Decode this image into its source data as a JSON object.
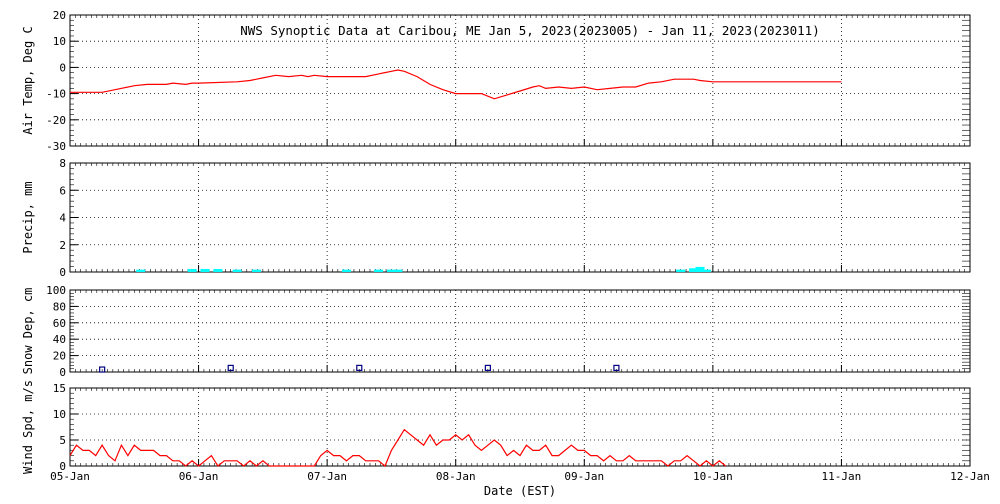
{
  "title": "NWS Synoptic Data at Caribou, ME   Jan  5, 2023(2023005) - Jan 11, 2023(2023011)",
  "chart_data": [
    {
      "type": "line",
      "ylabel": "Air Temp, Deg C",
      "ylim": [
        -30,
        20
      ],
      "yticks": [
        20,
        10,
        0,
        -10,
        -20,
        -30
      ],
      "xlim": [
        0,
        7
      ],
      "series": [
        {
          "color": "#ff0000",
          "x": [
            0,
            0.25,
            0.35,
            0.5,
            0.6,
            0.75,
            0.8,
            0.9,
            0.95,
            1.0,
            1.3,
            1.4,
            1.5,
            1.6,
            1.7,
            1.8,
            1.85,
            1.9,
            2.0,
            2.2,
            2.3,
            2.4,
            2.45,
            2.5,
            2.55,
            2.6,
            2.7,
            2.8,
            2.9,
            3.0,
            3.1,
            3.2,
            3.25,
            3.3,
            3.4,
            3.5,
            3.6,
            3.65,
            3.7,
            3.8,
            3.9,
            4.0,
            4.1,
            4.2,
            4.3,
            4.4,
            4.5,
            4.6,
            4.7,
            4.8,
            4.85,
            4.9,
            5.0,
            6.0
          ],
          "y": [
            -9.5,
            -9.5,
            -8.5,
            -7.0,
            -6.5,
            -6.5,
            -6.0,
            -6.5,
            -6.0,
            -6.0,
            -5.5,
            -5.0,
            -4.0,
            -3.0,
            -3.5,
            -3.0,
            -3.5,
            -3.0,
            -3.5,
            -3.5,
            -3.5,
            -2.5,
            -2.0,
            -1.5,
            -1.0,
            -1.5,
            -3.5,
            -6.5,
            -8.5,
            -10.0,
            -10.0,
            -10.0,
            -11.0,
            -12.0,
            -10.5,
            -9.0,
            -7.5,
            -7.0,
            -8.0,
            -7.5,
            -8.0,
            -7.5,
            -8.5,
            -8.0,
            -7.5,
            -7.5,
            -6.0,
            -5.5,
            -4.5,
            -4.5,
            -4.5,
            -5.0,
            -5.5,
            -5.5
          ]
        }
      ]
    },
    {
      "type": "bar",
      "ylabel": "Precip, mm",
      "ylim": [
        0,
        8
      ],
      "yticks": [
        8,
        6,
        4,
        2,
        0
      ],
      "xlim": [
        0,
        7
      ],
      "bar_color": "#00ffff",
      "x": [
        0.55,
        0.95,
        1.05,
        1.15,
        1.3,
        1.45,
        2.15,
        2.4,
        2.5,
        2.55,
        4.75,
        4.85,
        4.9,
        4.95
      ],
      "values": [
        0.1,
        0.15,
        0.15,
        0.15,
        0.1,
        0.1,
        0.1,
        0.1,
        0.1,
        0.1,
        0.1,
        0.2,
        0.3,
        0.1
      ]
    },
    {
      "type": "scatter",
      "ylabel": "Snow Dep, cm",
      "ylim": [
        0,
        100
      ],
      "yticks": [
        100,
        80,
        60,
        40,
        20,
        0
      ],
      "xlim": [
        0,
        7
      ],
      "marker_color": "#000080",
      "x": [
        0.25,
        1.25,
        2.25,
        3.25,
        4.25
      ],
      "y": [
        3,
        5,
        5,
        5,
        5
      ]
    },
    {
      "type": "line",
      "ylabel": "Wind Spd, m/s",
      "xlabel": "Date (EST)",
      "ylim": [
        0,
        15
      ],
      "yticks": [
        15,
        10,
        5,
        0
      ],
      "xlim": [
        0,
        7
      ],
      "categories": [
        "05-Jan",
        "06-Jan",
        "07-Jan",
        "08-Jan",
        "09-Jan",
        "10-Jan",
        "11-Jan",
        "12-Jan"
      ],
      "series": [
        {
          "color": "#ff0000",
          "x": [
            0,
            0.05,
            0.1,
            0.15,
            0.2,
            0.25,
            0.3,
            0.35,
            0.4,
            0.45,
            0.5,
            0.55,
            0.6,
            0.65,
            0.7,
            0.75,
            0.8,
            0.85,
            0.9,
            0.95,
            1.0,
            1.05,
            1.1,
            1.15,
            1.2,
            1.25,
            1.3,
            1.35,
            1.4,
            1.45,
            1.5,
            1.55,
            1.6,
            1.65,
            1.7,
            1.75,
            1.8,
            1.85,
            1.9,
            1.95,
            2.0,
            2.05,
            2.1,
            2.15,
            2.2,
            2.25,
            2.3,
            2.35,
            2.4,
            2.45,
            2.5,
            2.55,
            2.6,
            2.65,
            2.7,
            2.75,
            2.8,
            2.85,
            2.9,
            2.95,
            3.0,
            3.05,
            3.1,
            3.15,
            3.2,
            3.25,
            3.3,
            3.35,
            3.4,
            3.45,
            3.5,
            3.55,
            3.6,
            3.65,
            3.7,
            3.75,
            3.8,
            3.85,
            3.9,
            3.95,
            4.0,
            4.05,
            4.1,
            4.15,
            4.2,
            4.25,
            4.3,
            4.35,
            4.4,
            4.45,
            4.5,
            4.55,
            4.6,
            4.65,
            4.7,
            4.75,
            4.8,
            4.85,
            4.9,
            4.95,
            5.0,
            5.05,
            5.1
          ],
          "y": [
            2,
            4,
            3,
            3,
            2,
            4,
            2,
            1,
            4,
            2,
            4,
            3,
            3,
            3,
            2,
            2,
            1,
            1,
            0,
            1,
            0,
            1,
            2,
            0,
            1,
            1,
            1,
            0,
            1,
            0,
            1,
            0,
            0,
            0,
            0,
            0,
            0,
            0,
            0,
            2,
            3,
            2,
            2,
            1,
            2,
            2,
            1,
            1,
            1,
            0,
            3,
            5,
            7,
            6,
            5,
            4,
            6,
            4,
            5,
            5,
            6,
            5,
            6,
            4,
            3,
            4,
            5,
            4,
            2,
            3,
            2,
            4,
            3,
            3,
            4,
            2,
            2,
            3,
            4,
            3,
            3,
            2,
            2,
            1,
            2,
            1,
            1,
            2,
            1,
            1,
            1,
            1,
            1,
            0,
            1,
            1,
            2,
            1,
            0,
            1,
            0,
            1,
            0
          ]
        }
      ]
    }
  ]
}
